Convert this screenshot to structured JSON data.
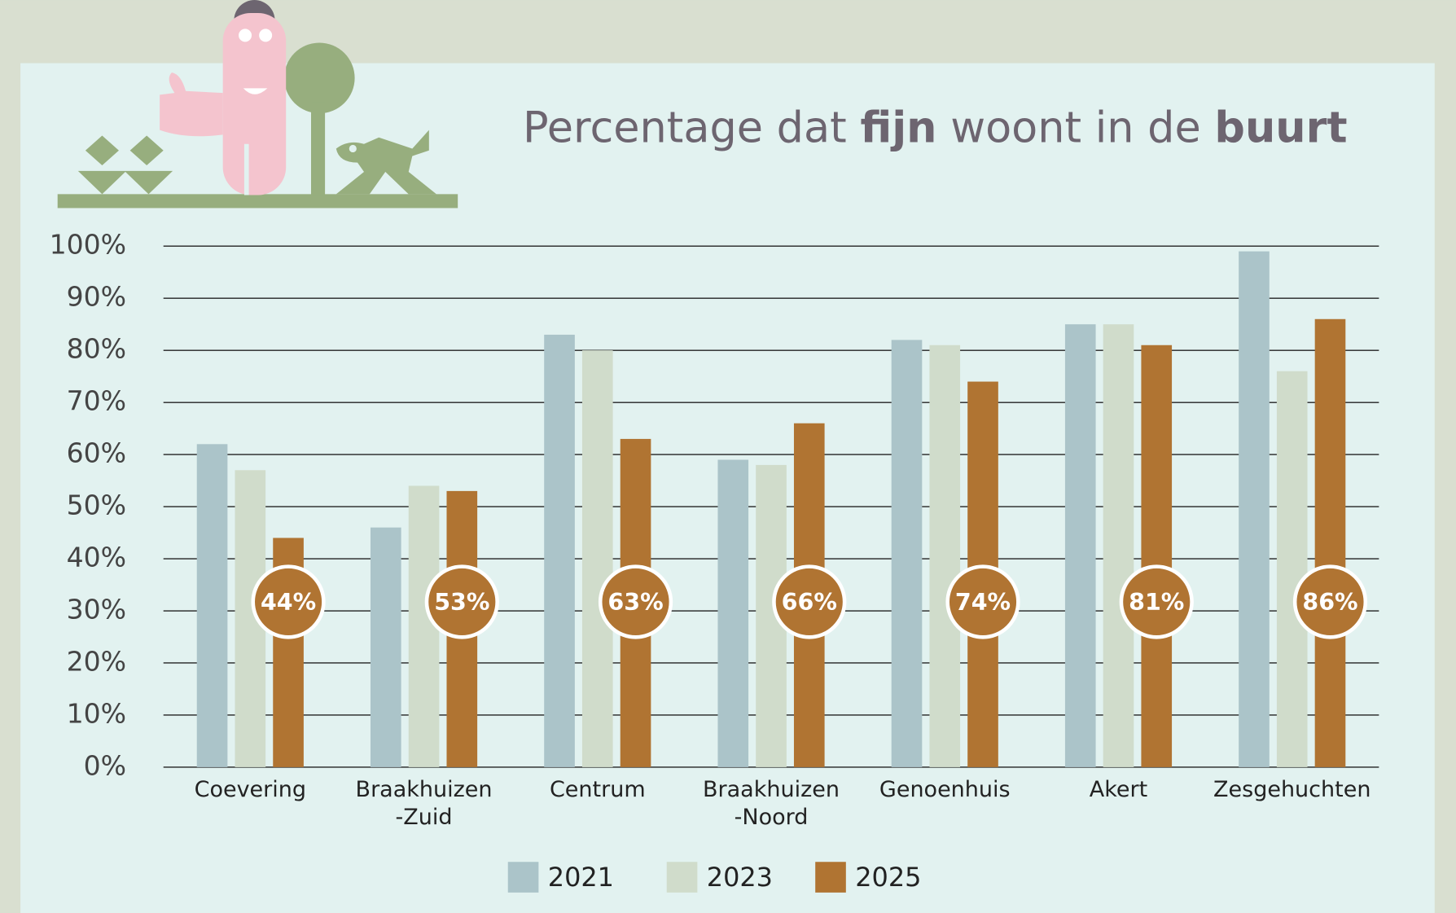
{
  "chart_data": {
    "type": "bar",
    "title": [
      "Percentage dat ",
      "fijn",
      " woont in de ",
      "buurt"
    ],
    "categories": [
      "Coevering",
      "Braakhuizen\n-Zuid",
      "Centrum",
      "Braakhuizen\n-Noord",
      "Genoenhuis",
      "Akert",
      "Zesgehuchten"
    ],
    "series": [
      {
        "name": "2021",
        "color": "#abc4c9",
        "values": [
          62,
          46,
          83,
          59,
          82,
          85,
          99
        ]
      },
      {
        "name": "2023",
        "color": "#d0dccb",
        "values": [
          57,
          54,
          80,
          58,
          81,
          85,
          76
        ]
      },
      {
        "name": "2025",
        "color": "#b07432",
        "values": [
          44,
          53,
          63,
          66,
          74,
          81,
          86
        ],
        "value_labels": [
          "44%",
          "53%",
          "63%",
          "66%",
          "74%",
          "81%",
          "86%"
        ]
      }
    ],
    "ylim": [
      0,
      100
    ],
    "yticks": [
      {
        "value": 0,
        "label": "0%"
      },
      {
        "value": 10,
        "label": "10%"
      },
      {
        "value": 20,
        "label": "20%"
      },
      {
        "value": 30,
        "label": "30%"
      },
      {
        "value": 40,
        "label": "40%"
      },
      {
        "value": 50,
        "label": "50%"
      },
      {
        "value": 60,
        "label": "60%"
      },
      {
        "value": 70,
        "label": "70%"
      },
      {
        "value": 80,
        "label": "80%"
      },
      {
        "value": 90,
        "label": "90%"
      },
      {
        "value": 100,
        "label": "100%"
      }
    ],
    "grid": true,
    "legend": "bottom"
  }
}
